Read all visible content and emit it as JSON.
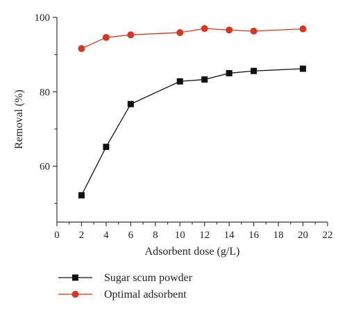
{
  "chart_data": {
    "type": "line",
    "xlabel": "Adsorbent dose (g/L)",
    "ylabel": "Removal (%)",
    "xlim": [
      0,
      22
    ],
    "ylim": [
      45,
      100
    ],
    "xticks": [
      0,
      2,
      4,
      6,
      8,
      10,
      12,
      14,
      16,
      18,
      20,
      22
    ],
    "yticks": [
      60,
      80,
      100
    ],
    "grid": false,
    "legend_position": "bottom-left",
    "series": [
      {
        "name": "Sugar scum powder",
        "color": "#111111",
        "marker": "square",
        "x": [
          2,
          4,
          6,
          10,
          12,
          14,
          16,
          20
        ],
        "y": [
          52.2,
          65.2,
          76.7,
          82.8,
          83.3,
          85.0,
          85.6,
          86.2
        ]
      },
      {
        "name": "Optimal adsorbent",
        "color": "#d7361f",
        "marker": "circle",
        "x": [
          2,
          4,
          6,
          10,
          12,
          14,
          16,
          20
        ],
        "y": [
          91.6,
          94.6,
          95.3,
          95.9,
          97.0,
          96.6,
          96.3,
          96.9
        ]
      }
    ]
  }
}
